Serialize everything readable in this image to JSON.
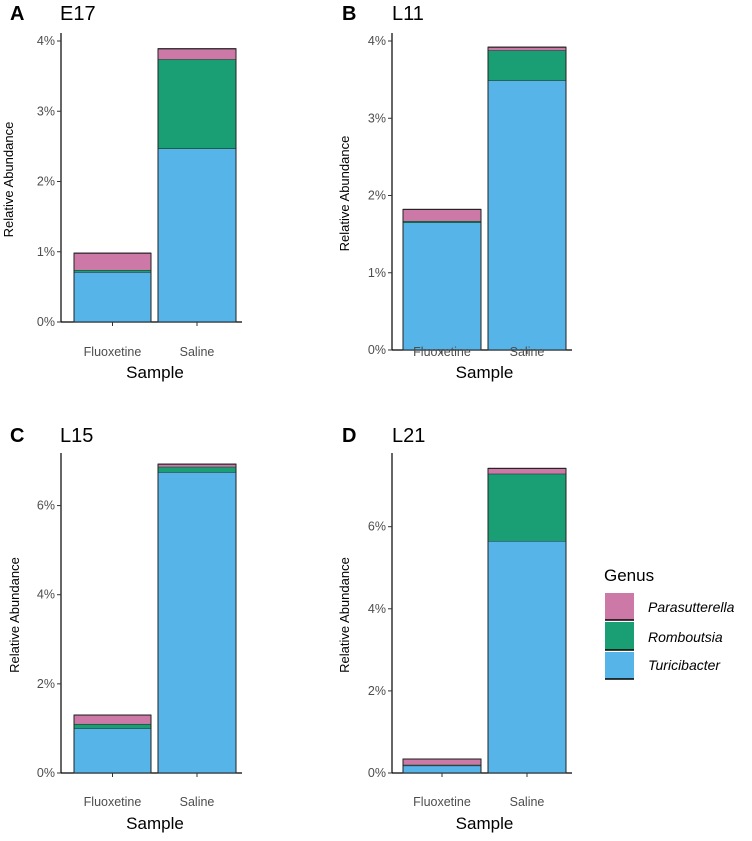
{
  "chart_data": [
    {
      "type": "bar",
      "stacked": true,
      "letter": "A",
      "title": "E17",
      "xlabel": "Sample",
      "ylabel": "Relative Abundance",
      "categories": [
        "Fluoxetine",
        "Saline"
      ],
      "ylim": [
        0,
        4
      ],
      "yticks": [
        0,
        1,
        2,
        3,
        4
      ],
      "ytick_labels": [
        "0%",
        "1%",
        "2%",
        "3%",
        "4%"
      ],
      "series": [
        {
          "name": "Turicibacter",
          "values": [
            0.71,
            2.47
          ]
        },
        {
          "name": "Romboutsia",
          "values": [
            0.03,
            1.27
          ]
        },
        {
          "name": "Parasutterella",
          "values": [
            0.24,
            0.15
          ]
        }
      ]
    },
    {
      "type": "bar",
      "stacked": true,
      "letter": "B",
      "title": "L11",
      "xlabel": "Sample",
      "ylabel": "Relative Abundance",
      "categories": [
        "Fluoxetine",
        "Saline"
      ],
      "ylim": [
        0,
        4
      ],
      "yticks": [
        0,
        1,
        2,
        3,
        4
      ],
      "ytick_labels": [
        "0%",
        "1%",
        "2%",
        "3%",
        "4%"
      ],
      "series": [
        {
          "name": "Turicibacter",
          "values": [
            1.65,
            3.49
          ]
        },
        {
          "name": "Romboutsia",
          "values": [
            0.02,
            0.39
          ]
        },
        {
          "name": "Parasutterella",
          "values": [
            0.15,
            0.04
          ]
        }
      ]
    },
    {
      "type": "bar",
      "stacked": true,
      "letter": "C",
      "title": "L15",
      "xlabel": "Sample",
      "ylabel": "Relative Abundance",
      "categories": [
        "Fluoxetine",
        "Saline"
      ],
      "ylim": [
        0,
        7
      ],
      "yticks": [
        0,
        2,
        4,
        6
      ],
      "ytick_labels": [
        "0%",
        "2%",
        "4%",
        "6%"
      ],
      "series": [
        {
          "name": "Turicibacter",
          "values": [
            1.0,
            6.75
          ]
        },
        {
          "name": "Romboutsia",
          "values": [
            0.1,
            0.12
          ]
        },
        {
          "name": "Parasutterella",
          "values": [
            0.2,
            0.06
          ]
        }
      ]
    },
    {
      "type": "bar",
      "stacked": true,
      "letter": "D",
      "title": "L21",
      "xlabel": "Sample",
      "ylabel": "Relative Abundance",
      "categories": [
        "Fluoxetine",
        "Saline"
      ],
      "ylim": [
        0,
        7.6
      ],
      "yticks": [
        0,
        2,
        4,
        6
      ],
      "ytick_labels": [
        "0%",
        "2%",
        "4%",
        "6%"
      ],
      "series": [
        {
          "name": "Turicibacter",
          "values": [
            0.18,
            5.65
          ]
        },
        {
          "name": "Romboutsia",
          "values": [
            0.02,
            1.64
          ]
        },
        {
          "name": "Parasutterella",
          "values": [
            0.14,
            0.13
          ]
        }
      ]
    }
  ],
  "legend": {
    "title": "Genus",
    "items": [
      {
        "name": "Parasutterella",
        "color": "#cc79a7"
      },
      {
        "name": "Romboutsia",
        "color": "#1a9e73"
      },
      {
        "name": "Turicibacter",
        "color": "#56b4e9"
      }
    ]
  }
}
